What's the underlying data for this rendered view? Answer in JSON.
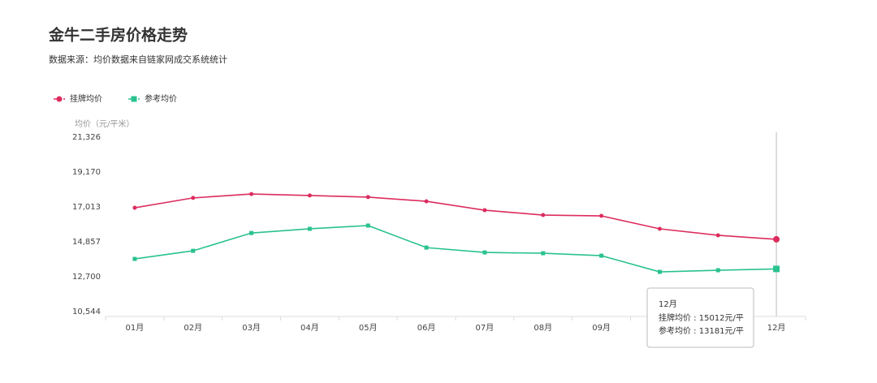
{
  "chart_data": {
    "type": "line",
    "title": "金牛二手房价格走势",
    "subtitle": "数据来源：均价数据来自链家网成交系统统计",
    "y_label": "均价（元/平米）",
    "categories": [
      "01月",
      "02月",
      "03月",
      "04月",
      "05月",
      "06月",
      "07月",
      "08月",
      "09月",
      null,
      null,
      "12月"
    ],
    "series": [
      {
        "name": "挂牌均价",
        "color": "#dc2c5e",
        "marker": "circle",
        "values": [
          16960,
          17570,
          17810,
          17720,
          17620,
          17360,
          16810,
          16510,
          16460,
          15660,
          15260,
          15012
        ]
      },
      {
        "name": "参考均价",
        "color": "#2ac28f",
        "marker": "square",
        "values": [
          13800,
          14300,
          15400,
          15660,
          15860,
          14500,
          14200,
          14150,
          14000,
          13000,
          13100,
          13181
        ]
      }
    ],
    "ylim": [
      10544,
      21326
    ],
    "yticks": [
      {
        "value": 10544,
        "label": "10,544"
      },
      {
        "value": 12700,
        "label": "12,700"
      },
      {
        "value": 14857,
        "label": "14,857"
      },
      {
        "value": 17013,
        "label": "17,013"
      },
      {
        "value": 19170,
        "label": "19,170"
      },
      {
        "value": 21326,
        "label": "21,326"
      }
    ],
    "grid": false,
    "legend": "top-left",
    "tooltip": {
      "title": "12月",
      "lines": [
        "挂牌均价 : 15012元/平",
        "参考均价 : 13181元/平"
      ]
    }
  }
}
